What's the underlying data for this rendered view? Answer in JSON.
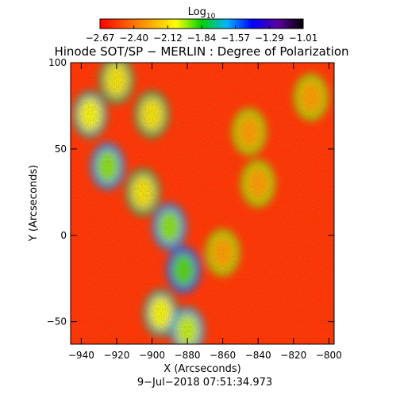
{
  "chart_data": {
    "type": "heatmap",
    "title": "Hinode SOT/SP − MERLIN : Degree of Polarization",
    "xlabel": "X (Arcseconds)",
    "ylabel": "Y (Arcseconds)",
    "xlim": [
      -946,
      -797
    ],
    "ylim": [
      -63,
      100
    ],
    "x_ticks": [
      -940,
      -920,
      -900,
      -880,
      -860,
      -840,
      -820,
      -800
    ],
    "y_ticks": [
      -50,
      0,
      50,
      100
    ],
    "colorbar": {
      "title": "Log10",
      "title_main": "Log",
      "title_sub": "10",
      "range": [
        -2.67,
        -1.01
      ],
      "tick_labels": [
        "−2.67",
        "−2.40",
        "−2.12",
        "−1.84",
        "−1.57",
        "−1.29",
        "−1.01"
      ],
      "colormap": [
        "#ff0000",
        "#ff5500",
        "#ffaa00",
        "#ffff00",
        "#00d200",
        "#00b4ff",
        "#0000ff",
        "#5a00a0",
        "#000000"
      ]
    },
    "timestamp": "9−Jul−2018 07:51:34.973",
    "regions": [
      {
        "x": -925,
        "y": 40,
        "level": -1.95
      },
      {
        "x": -935,
        "y": 70,
        "level": -2.05
      },
      {
        "x": -920,
        "y": 90,
        "level": -2.1
      },
      {
        "x": -900,
        "y": 70,
        "level": -2.1
      },
      {
        "x": -890,
        "y": 5,
        "level": -1.95
      },
      {
        "x": -882,
        "y": -20,
        "level": -1.9
      },
      {
        "x": -895,
        "y": -45,
        "level": -2.05
      },
      {
        "x": -880,
        "y": -55,
        "level": -2.0
      },
      {
        "x": -905,
        "y": 25,
        "level": -2.1
      },
      {
        "x": -845,
        "y": 60,
        "level": -2.3
      },
      {
        "x": -840,
        "y": 30,
        "level": -2.3
      },
      {
        "x": -810,
        "y": 80,
        "level": -2.3
      },
      {
        "x": -860,
        "y": -10,
        "level": -2.3
      }
    ],
    "background_level": -2.55
  }
}
